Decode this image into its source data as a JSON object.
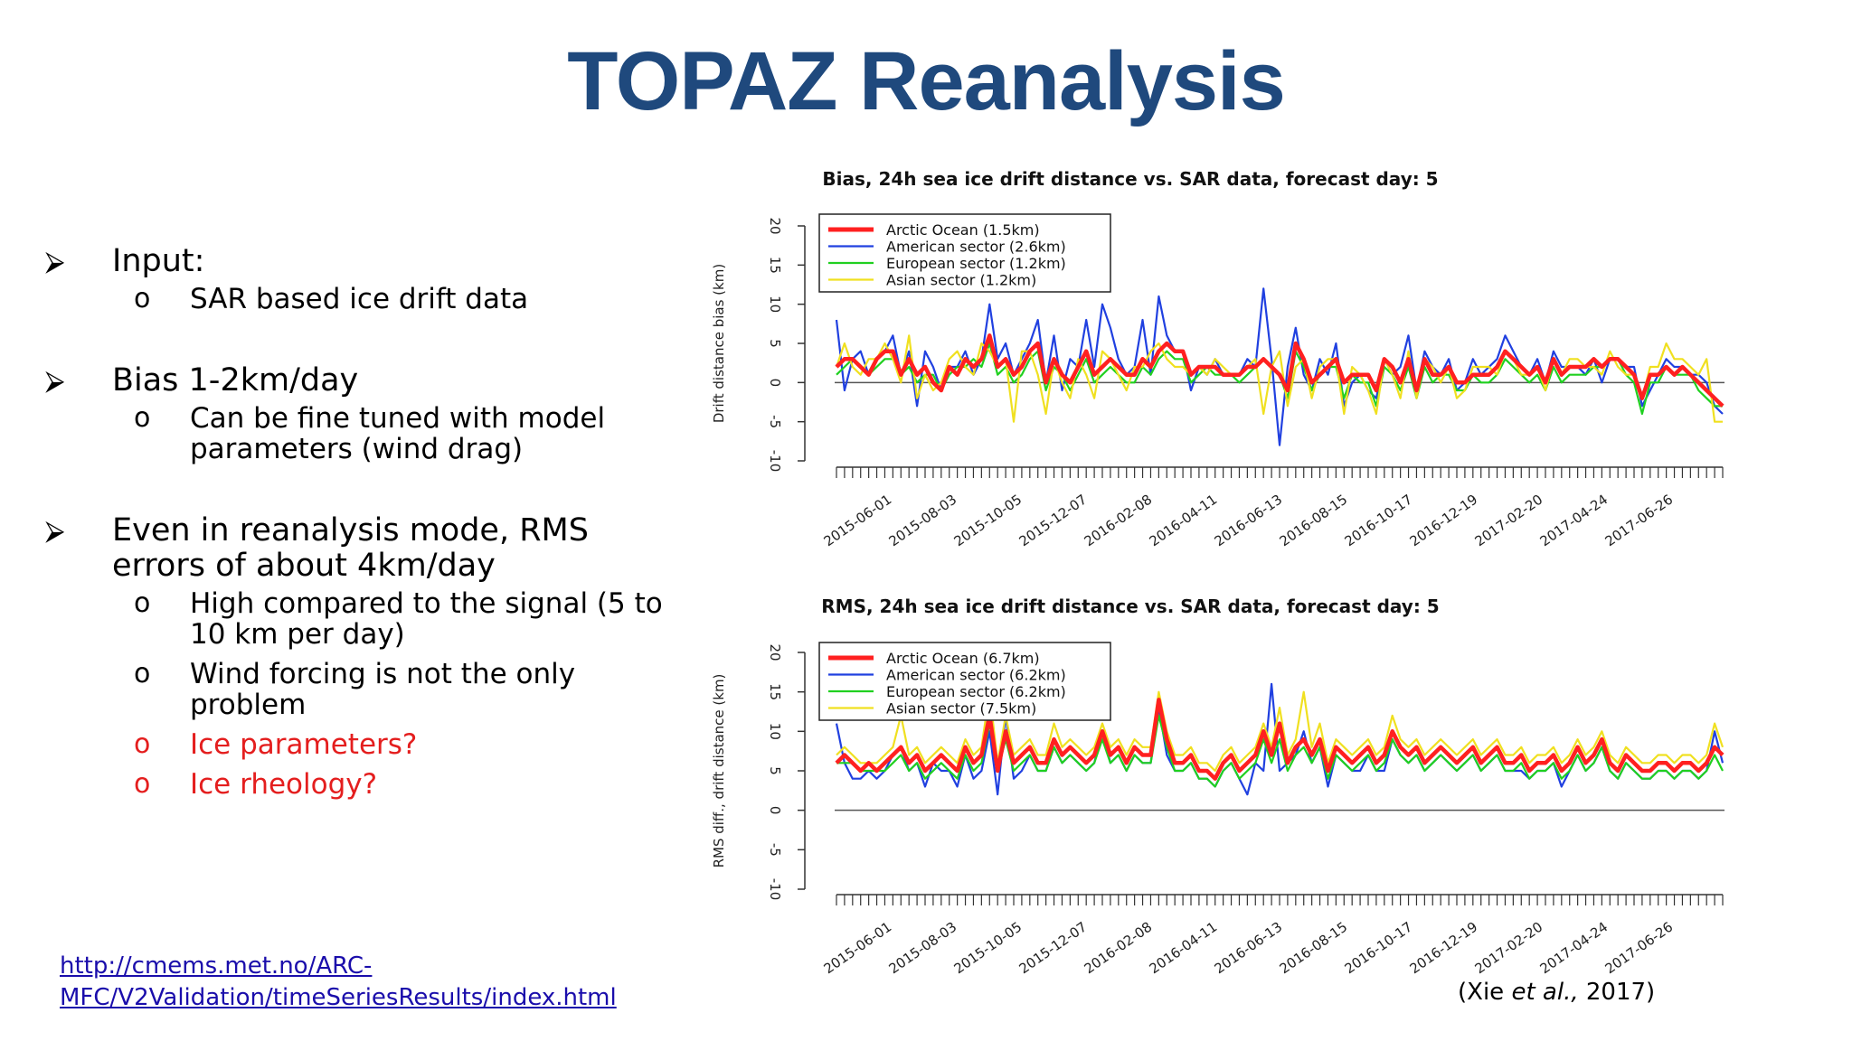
{
  "slide": {
    "title": "TOPAZ Reanalysis",
    "bullets": [
      {
        "text": "Input:",
        "subs": [
          {
            "text": "SAR based ice drift data",
            "red": false
          }
        ]
      },
      {
        "text": "Bias 1-2km/day",
        "subs": [
          {
            "text": "Can be fine tuned with model parameters (wind drag)",
            "red": false
          }
        ]
      },
      {
        "text": "Even in reanalysis mode, RMS errors of about 4km/day",
        "subs": [
          {
            "text": "High compared to the signal (5 to 10 km per day)",
            "red": false
          },
          {
            "text": "Wind forcing is not the only problem",
            "red": false
          },
          {
            "text": "Ice parameters?",
            "red": true
          },
          {
            "text": "Ice rheology?",
            "red": true
          }
        ]
      }
    ],
    "link": "http://cmems.met.no/ARC-MFC/V2Validation/timeSeriesResults/index.html",
    "citation_prefix": "(Xie ",
    "citation_italic": "et al.,",
    "citation_suffix": " 2017)"
  },
  "chart_data": [
    {
      "type": "line",
      "title": "Bias, 24h sea ice drift distance vs. SAR data, forecast day: 5",
      "ylabel": "Drift distance bias (km)",
      "ylim": [
        -10,
        20
      ],
      "yticks": [
        -10,
        -5,
        0,
        5,
        10,
        15,
        20
      ],
      "x_ticklabels": [
        "2015-06-01",
        "2015-08-03",
        "2015-10-05",
        "2015-12-07",
        "2016-02-08",
        "2016-04-11",
        "2016-06-13",
        "2016-08-15",
        "2016-10-17",
        "2016-12-19",
        "2017-02-20",
        "2017-04-24",
        "2017-06-26"
      ],
      "legend_location": "top-left",
      "series": [
        {
          "name": "Arctic Ocean (1.5km)",
          "color": "#ff2020",
          "values": [
            2,
            3,
            3,
            2,
            1,
            3,
            4,
            4,
            1,
            3,
            1,
            2,
            0,
            -1,
            2,
            1,
            3,
            2,
            3,
            6,
            2,
            3,
            1,
            2,
            4,
            5,
            0,
            3,
            1,
            0,
            2,
            4,
            1,
            2,
            3,
            2,
            1,
            1,
            3,
            2,
            4,
            5,
            4,
            4,
            1,
            2,
            2,
            2,
            1,
            1,
            1,
            2,
            2,
            3,
            2,
            1,
            -1,
            5,
            3,
            0,
            1,
            2,
            3,
            0,
            1,
            1,
            1,
            -1,
            3,
            2,
            0,
            3,
            -1,
            3,
            1,
            1,
            2,
            0,
            0,
            1,
            1,
            1,
            2,
            4,
            3,
            2,
            1,
            2,
            0,
            3,
            1,
            2,
            2,
            2,
            3,
            2,
            3,
            3,
            2,
            1,
            -2,
            1,
            1,
            2,
            1,
            2,
            1,
            0,
            -1,
            -2,
            -3
          ]
        },
        {
          "name": "American sector (2.6km)",
          "color": "#2040e0",
          "values": [
            8,
            -1,
            3,
            4,
            1,
            3,
            4,
            6,
            1,
            4,
            -3,
            4,
            2,
            -1,
            2,
            2,
            4,
            1,
            3,
            10,
            3,
            5,
            1,
            3,
            5,
            8,
            0,
            6,
            -1,
            3,
            2,
            8,
            2,
            10,
            7,
            3,
            1,
            2,
            8,
            1,
            11,
            6,
            4,
            4,
            -1,
            2,
            1,
            3,
            1,
            1,
            1,
            3,
            2,
            12,
            3,
            -8,
            2,
            7,
            1,
            -1,
            3,
            1,
            5,
            -3,
            0,
            1,
            -1,
            -2,
            3,
            1,
            2,
            6,
            -1,
            4,
            2,
            1,
            3,
            -1,
            0,
            3,
            1,
            2,
            3,
            6,
            4,
            2,
            1,
            3,
            0,
            4,
            2,
            2,
            2,
            1,
            3,
            0,
            3,
            3,
            2,
            2,
            -3,
            -1,
            1,
            3,
            2,
            2,
            1,
            1,
            0,
            -3,
            -4
          ]
        },
        {
          "name": "European sector (1.2km)",
          "color": "#20d020",
          "values": [
            1,
            2,
            3,
            2,
            1,
            2,
            3,
            3,
            1,
            2,
            0,
            1,
            1,
            -1,
            1,
            2,
            2,
            3,
            2,
            5,
            1,
            2,
            0,
            1,
            3,
            4,
            -1,
            2,
            1,
            -1,
            1,
            3,
            0,
            1,
            2,
            1,
            0,
            0,
            2,
            1,
            3,
            4,
            3,
            3,
            0,
            1,
            2,
            1,
            1,
            1,
            0,
            1,
            2,
            3,
            2,
            1,
            -2,
            4,
            2,
            -1,
            1,
            2,
            2,
            -2,
            1,
            0,
            0,
            -3,
            2,
            1,
            -1,
            2,
            -2,
            2,
            0,
            1,
            1,
            -1,
            -1,
            1,
            0,
            0,
            1,
            3,
            2,
            1,
            0,
            1,
            -1,
            2,
            0,
            1,
            1,
            1,
            2,
            2,
            3,
            3,
            1,
            0,
            -4,
            0,
            0,
            2,
            1,
            1,
            1,
            -1,
            -2,
            -3,
            -3
          ]
        },
        {
          "name": "Asian sector (1.2km)",
          "color": "#f0e020",
          "values": [
            2,
            5,
            2,
            1,
            3,
            3,
            5,
            3,
            0,
            6,
            -2,
            1,
            -1,
            0,
            3,
            4,
            2,
            1,
            5,
            4,
            2,
            3,
            -5,
            4,
            4,
            1,
            -4,
            3,
            0,
            -2,
            3,
            1,
            -2,
            4,
            3,
            1,
            -1,
            2,
            2,
            4,
            5,
            3,
            2,
            2,
            1,
            2,
            1,
            3,
            2,
            1,
            1,
            2,
            3,
            -4,
            2,
            4,
            -3,
            2,
            3,
            -2,
            2,
            3,
            3,
            -4,
            2,
            1,
            -1,
            -4,
            3,
            1,
            -2,
            4,
            -2,
            3,
            2,
            0,
            2,
            -2,
            -1,
            2,
            2,
            2,
            1,
            4,
            3,
            1,
            1,
            2,
            -1,
            3,
            1,
            3,
            3,
            2,
            2,
            1,
            4,
            2,
            1,
            1,
            -2,
            2,
            2,
            5,
            3,
            3,
            2,
            1,
            3,
            -5,
            -5
          ]
        }
      ]
    },
    {
      "type": "line",
      "title": "RMS, 24h sea ice drift distance vs. SAR data, forecast day: 5",
      "ylabel": "RMS diff., drift distance (km)",
      "ylim": [
        -10,
        20
      ],
      "yticks": [
        -10,
        -5,
        0,
        5,
        10,
        15,
        20
      ],
      "x_ticklabels": [
        "2015-06-01",
        "2015-08-03",
        "2015-10-05",
        "2015-12-07",
        "2016-02-08",
        "2016-04-11",
        "2016-06-13",
        "2016-08-15",
        "2016-10-17",
        "2016-12-19",
        "2017-02-20",
        "2017-04-24",
        "2017-06-26"
      ],
      "legend_location": "top-left",
      "series": [
        {
          "name": "Arctic Ocean (6.7km)",
          "color": "#ff2020",
          "values": [
            6,
            7,
            6,
            5,
            6,
            5,
            6,
            7,
            8,
            6,
            7,
            5,
            6,
            7,
            6,
            5,
            8,
            6,
            7,
            12,
            5,
            10,
            6,
            7,
            8,
            6,
            6,
            9,
            7,
            8,
            7,
            6,
            7,
            10,
            7,
            8,
            6,
            8,
            7,
            7,
            14,
            9,
            6,
            6,
            7,
            5,
            5,
            4,
            6,
            7,
            5,
            6,
            7,
            10,
            7,
            11,
            6,
            8,
            9,
            7,
            9,
            5,
            8,
            7,
            6,
            7,
            8,
            6,
            7,
            10,
            8,
            7,
            8,
            6,
            7,
            8,
            7,
            6,
            7,
            8,
            6,
            7,
            8,
            6,
            6,
            7,
            5,
            6,
            6,
            7,
            5,
            6,
            8,
            6,
            7,
            9,
            6,
            5,
            7,
            6,
            5,
            5,
            6,
            6,
            5,
            6,
            6,
            5,
            6,
            8,
            7
          ]
        },
        {
          "name": "American sector (6.2km)",
          "color": "#2040e0",
          "values": [
            11,
            6,
            4,
            4,
            5,
            4,
            5,
            7,
            8,
            5,
            6,
            3,
            6,
            5,
            5,
            3,
            7,
            4,
            5,
            10,
            2,
            12,
            4,
            5,
            7,
            5,
            5,
            8,
            6,
            7,
            6,
            5,
            6,
            10,
            6,
            7,
            5,
            7,
            6,
            6,
            13,
            7,
            5,
            5,
            6,
            4,
            4,
            3,
            5,
            6,
            4,
            2,
            6,
            5,
            16,
            5,
            6,
            7,
            10,
            6,
            8,
            3,
            7,
            6,
            5,
            5,
            7,
            5,
            5,
            9,
            7,
            6,
            7,
            5,
            6,
            7,
            6,
            5,
            6,
            7,
            5,
            6,
            7,
            5,
            5,
            5,
            4,
            5,
            5,
            6,
            3,
            5,
            7,
            5,
            6,
            8,
            5,
            4,
            6,
            5,
            4,
            4,
            5,
            5,
            4,
            5,
            5,
            4,
            5,
            10,
            6
          ]
        },
        {
          "name": "European sector (6.2km)",
          "color": "#20d020",
          "values": [
            6,
            6,
            6,
            5,
            5,
            5,
            5,
            6,
            7,
            5,
            6,
            4,
            5,
            6,
            5,
            4,
            7,
            5,
            6,
            11,
            5,
            9,
            5,
            6,
            7,
            5,
            5,
            8,
            6,
            7,
            6,
            5,
            6,
            9,
            6,
            7,
            5,
            7,
            6,
            6,
            12,
            8,
            5,
            5,
            6,
            4,
            4,
            3,
            5,
            6,
            4,
            5,
            6,
            9,
            6,
            9,
            5,
            7,
            8,
            6,
            8,
            4,
            7,
            6,
            5,
            6,
            7,
            5,
            6,
            9,
            7,
            6,
            7,
            5,
            6,
            7,
            6,
            5,
            6,
            7,
            5,
            6,
            7,
            5,
            5,
            6,
            4,
            5,
            5,
            6,
            4,
            5,
            7,
            5,
            6,
            8,
            5,
            4,
            6,
            5,
            4,
            4,
            5,
            5,
            4,
            5,
            5,
            4,
            5,
            7,
            5
          ]
        },
        {
          "name": "Asian sector (7.5km)",
          "color": "#f0e020",
          "values": [
            7,
            8,
            7,
            6,
            6,
            6,
            7,
            8,
            12,
            7,
            8,
            6,
            7,
            8,
            7,
            6,
            9,
            7,
            8,
            15,
            6,
            12,
            7,
            8,
            9,
            7,
            7,
            11,
            8,
            9,
            8,
            7,
            8,
            11,
            8,
            9,
            7,
            9,
            8,
            8,
            15,
            10,
            7,
            7,
            8,
            6,
            6,
            5,
            7,
            8,
            6,
            7,
            8,
            11,
            8,
            13,
            7,
            9,
            15,
            8,
            11,
            6,
            9,
            8,
            7,
            8,
            9,
            7,
            8,
            12,
            9,
            8,
            9,
            7,
            8,
            9,
            8,
            7,
            8,
            9,
            7,
            8,
            9,
            7,
            7,
            8,
            6,
            7,
            7,
            8,
            6,
            7,
            9,
            7,
            8,
            10,
            7,
            6,
            8,
            7,
            6,
            6,
            7,
            7,
            6,
            7,
            7,
            6,
            7,
            11,
            8
          ]
        }
      ]
    }
  ]
}
